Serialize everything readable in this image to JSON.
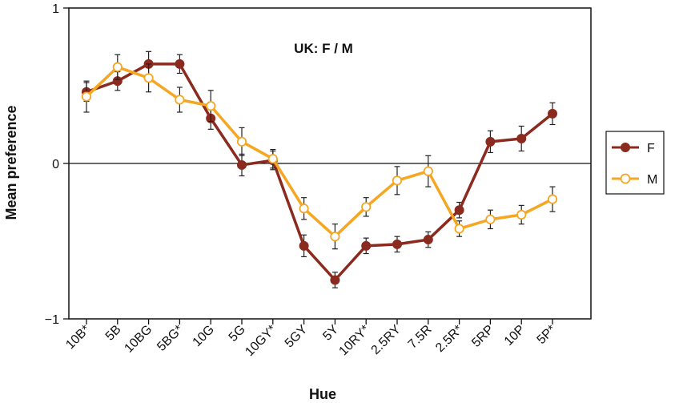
{
  "chart_data": {
    "type": "line",
    "annotation": "UK: F / M",
    "xlabel": "Hue",
    "ylabel": "Mean preference",
    "categories": [
      "10B*",
      "5B",
      "10BG",
      "5BG*",
      "10G",
      "5G",
      "10GY*",
      "5GY",
      "5Y",
      "10RY*",
      "2.5RY",
      "7.5R",
      "2.5R*",
      "5RP",
      "10P",
      "5P*"
    ],
    "ylim": [
      -1,
      1
    ],
    "yticks": [
      1,
      0,
      -1
    ],
    "ytick_labels": [
      "1",
      "0",
      "−1"
    ],
    "legend_position": "right",
    "series": [
      {
        "name": "F",
        "color": "#8b2a1f",
        "marker": "filled-circle",
        "values": [
          0.46,
          0.53,
          0.64,
          0.64,
          0.29,
          -0.01,
          0.02,
          -0.53,
          -0.75,
          -0.53,
          -0.52,
          -0.49,
          -0.3,
          0.14,
          0.16,
          0.32
        ],
        "errors": [
          0.06,
          0.06,
          0.08,
          0.06,
          0.07,
          0.07,
          0.06,
          0.07,
          0.05,
          0.05,
          0.05,
          0.05,
          0.05,
          0.07,
          0.08,
          0.07
        ]
      },
      {
        "name": "M",
        "color": "#f5a623",
        "marker": "open-circle",
        "values": [
          0.43,
          0.62,
          0.55,
          0.41,
          0.37,
          0.14,
          0.03,
          -0.29,
          -0.47,
          -0.28,
          -0.11,
          -0.05,
          -0.42,
          -0.36,
          -0.33,
          -0.23
        ],
        "errors": [
          0.1,
          0.08,
          0.09,
          0.08,
          0.1,
          0.09,
          0.06,
          0.07,
          0.08,
          0.06,
          0.09,
          0.1,
          0.05,
          0.06,
          0.06,
          0.08
        ]
      }
    ]
  }
}
